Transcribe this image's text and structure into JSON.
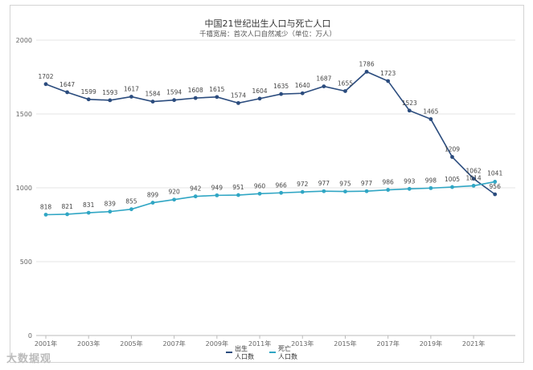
{
  "chart_data": {
    "type": "line",
    "title": "中国21世纪出生人口与死亡人口",
    "subtitle": "千禧宽局：首次人口自然减少（单位：万人）",
    "x": [
      2001,
      2002,
      2003,
      2004,
      2005,
      2006,
      2007,
      2008,
      2009,
      2010,
      2011,
      2012,
      2013,
      2014,
      2015,
      2016,
      2017,
      2018,
      2019,
      2020,
      2021,
      2022
    ],
    "x_tick_labels": [
      "2001年",
      "2003年",
      "2005年",
      "2007年",
      "2009年",
      "2011年",
      "2013年",
      "2015年",
      "2017年",
      "2019年",
      "2021年"
    ],
    "y_ticks": [
      0,
      500,
      1000,
      1500,
      2000
    ],
    "ylim": [
      0,
      2000
    ],
    "grid": true,
    "legend_position": "bottom",
    "series": [
      {
        "name": "出生人口数",
        "legend_line1": "出生",
        "legend_line2": "人口数",
        "color": "#2b4c7e",
        "values": [
          1702,
          1647,
          1599,
          1593,
          1617,
          1584,
          1594,
          1608,
          1615,
          1574,
          1604,
          1635,
          1640,
          1687,
          1655,
          1786,
          1723,
          1523,
          1465,
          1209,
          1062,
          956
        ],
        "labels": [
          "1702",
          "1647",
          "1599",
          "1593",
          "1617",
          "1584",
          "1594",
          "1608",
          "1615",
          "1574",
          "1604",
          "1635",
          "1640",
          "1687",
          "1655",
          "1786",
          "1723",
          "1523",
          "1465",
          "1209",
          "1062",
          "956"
        ]
      },
      {
        "name": "死亡人口数",
        "legend_line1": "死亡",
        "legend_line2": "人口数",
        "color": "#30a6c4",
        "values": [
          818,
          821,
          831,
          839,
          855,
          899,
          920,
          942,
          949,
          951,
          960,
          966,
          972,
          977,
          975,
          977,
          986,
          993,
          998,
          1005,
          1014,
          1041
        ],
        "labels": [
          "818",
          "821",
          "831",
          "839",
          "855",
          "899",
          "920",
          "942",
          "949",
          "951",
          "960",
          "966",
          "972",
          "977",
          "975",
          "977",
          "986",
          "993",
          "998",
          "1005",
          "1014",
          "1041"
        ]
      }
    ]
  },
  "watermark": "大数据观"
}
